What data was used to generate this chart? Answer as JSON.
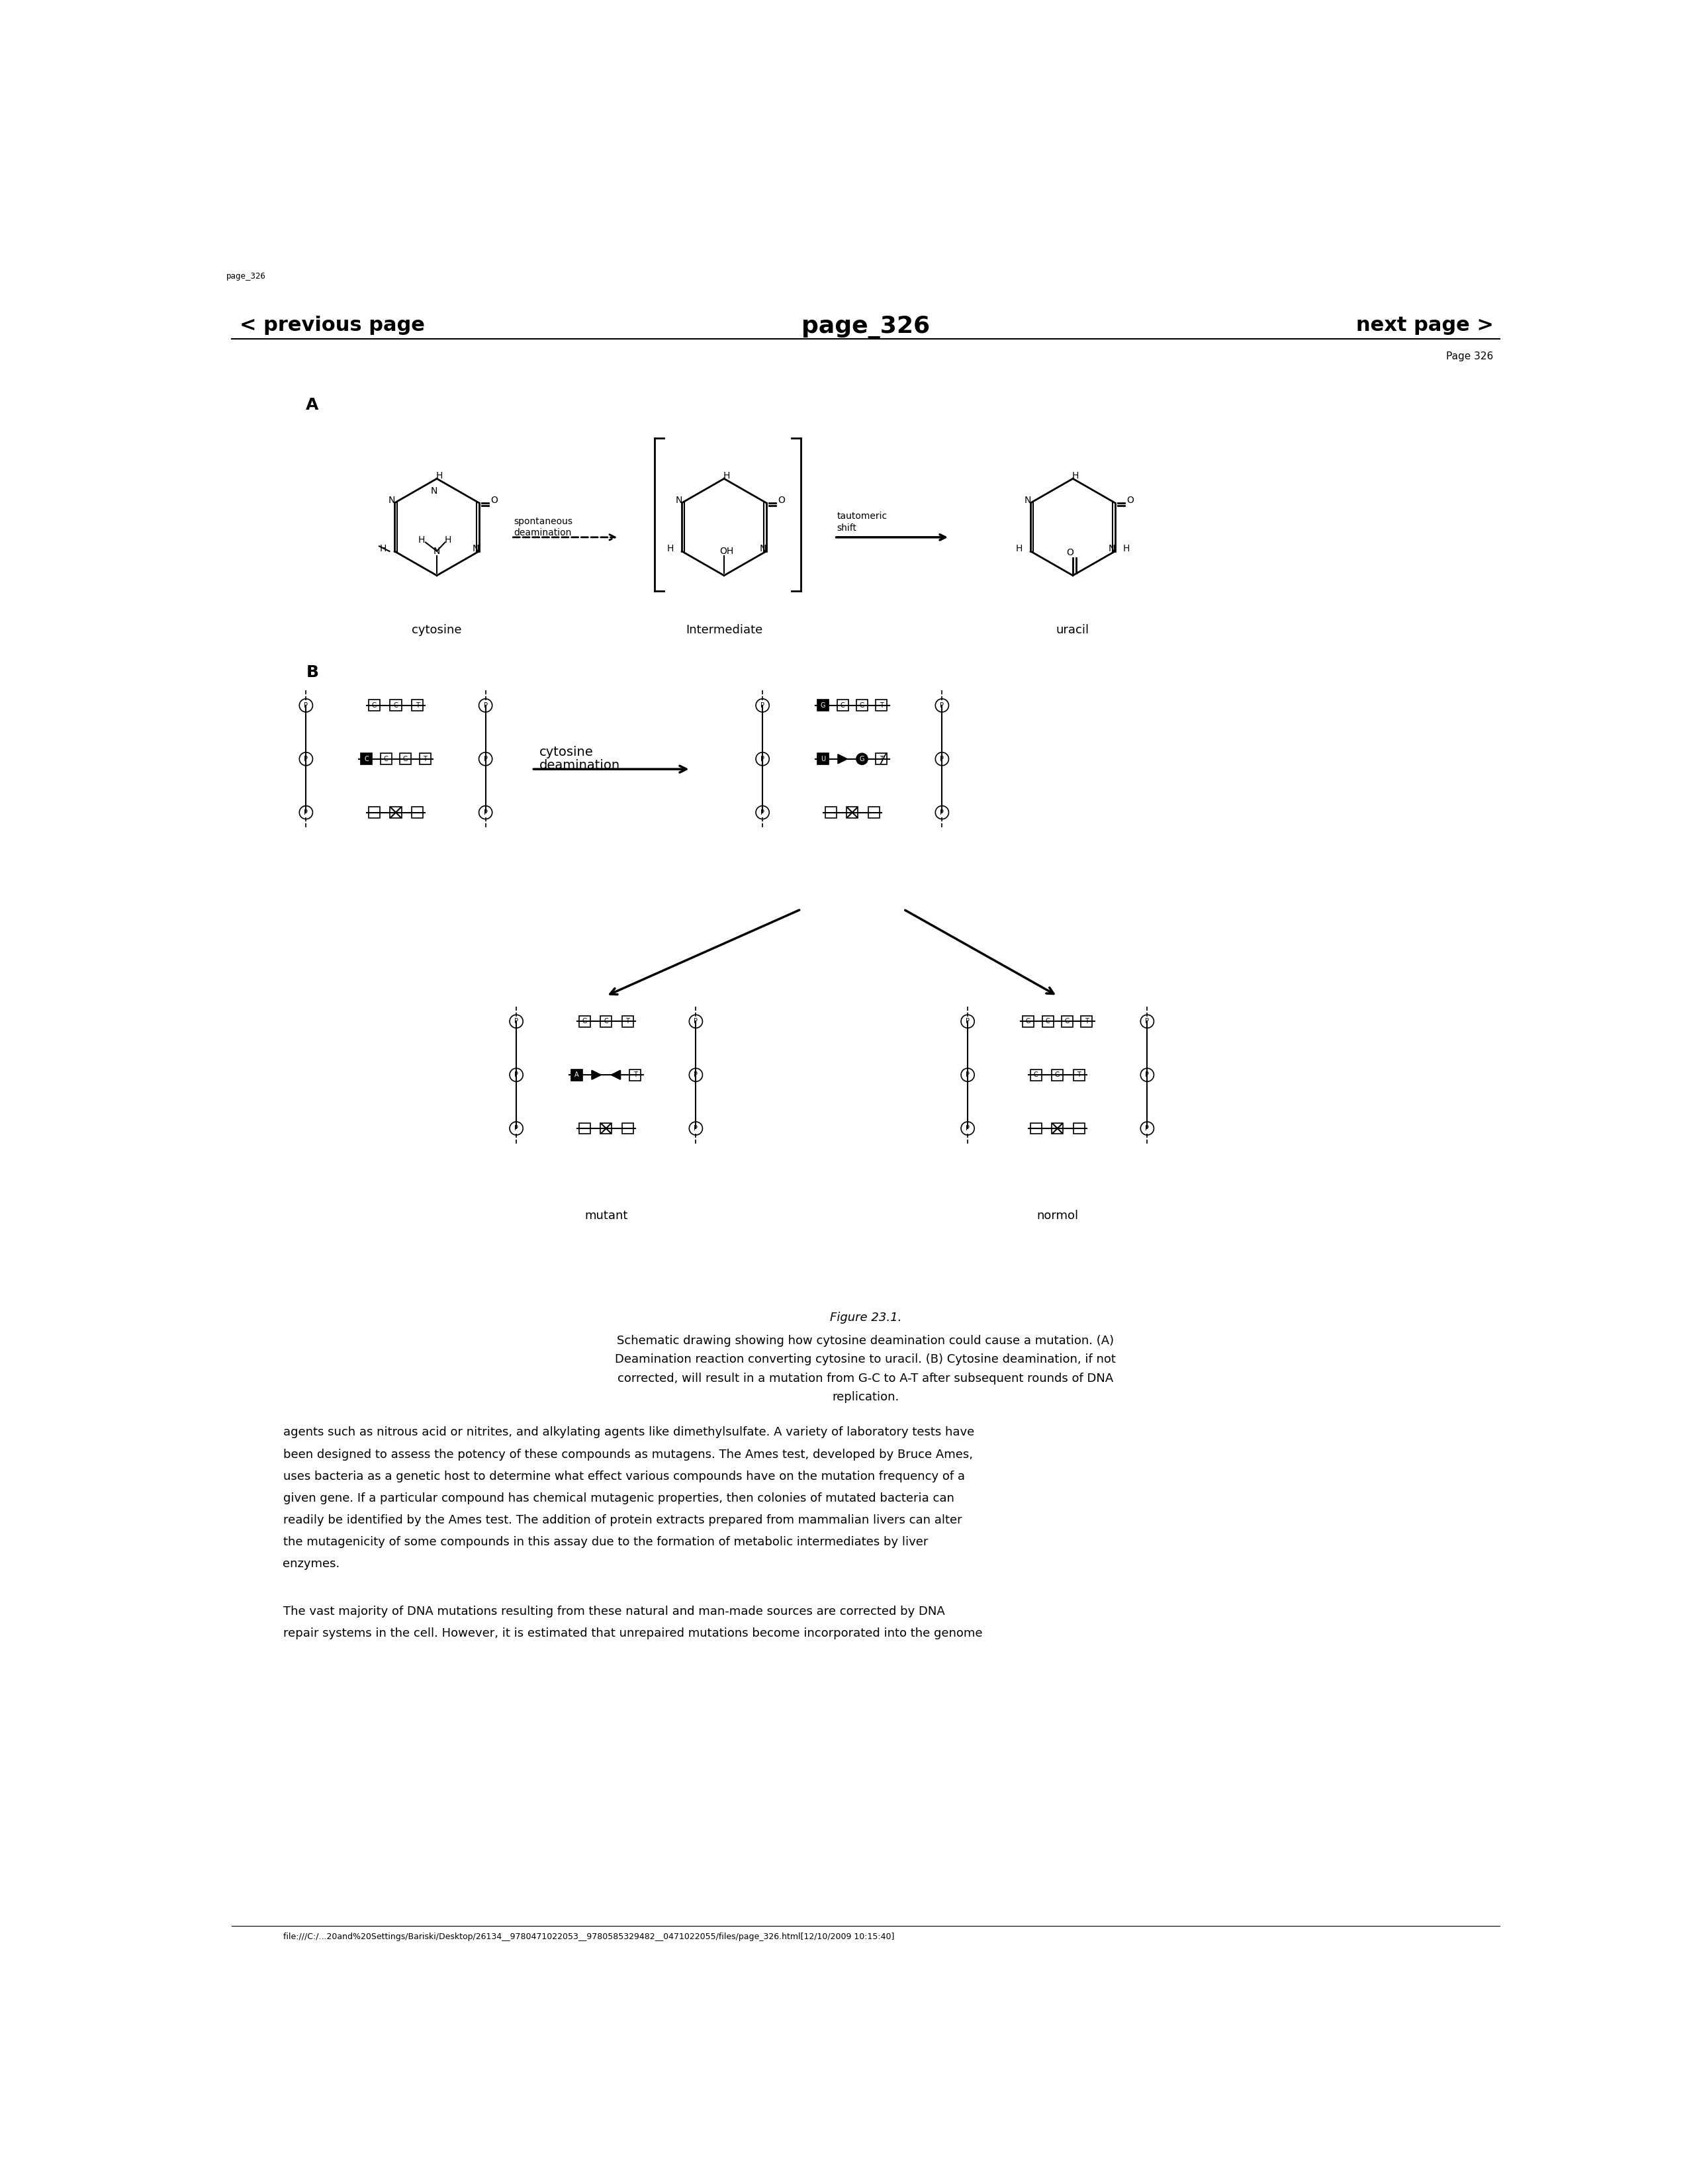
{
  "bg_color": "#ffffff",
  "page_label": "page_326",
  "nav_left": "< previous page",
  "nav_center": "page_326",
  "nav_right": "next page >",
  "page_number": "Page 326",
  "figure_caption_title": "Figure 23.1.",
  "figure_caption_lines": [
    "Schematic drawing showing how cytosine deamination could cause a mutation. (A)",
    "Deamination reaction converting cytosine to uracil. (B) Cytosine deamination, if not",
    "corrected, will result in a mutation from G-C to A-T after subsequent rounds of DNA",
    "replication."
  ],
  "body_text_1_lines": [
    "agents such as nitrous acid or nitrites, and alkylating agents like dimethylsulfate. A variety of laboratory tests have",
    "been designed to assess the potency of these compounds as mutagens. The Ames test, developed by Bruce Ames,",
    "uses bacteria as a genetic host to determine what effect various compounds have on the mutation frequency of a",
    "given gene. If a particular compound has chemical mutagenic properties, then colonies of mutated bacteria can",
    "readily be identified by the Ames test. The addition of protein extracts prepared from mammalian livers can alter",
    "the mutagenicity of some compounds in this assay due to the formation of metabolic intermediates by liver",
    "enzymes."
  ],
  "body_text_2_lines": [
    "The vast majority of DNA mutations resulting from these natural and man-made sources are corrected by DNA",
    "repair systems in the cell. However, it is estimated that unrepaired mutations become incorporated into the genome"
  ],
  "footer": "file:///C:/...20and%20Settings/Bariski/Desktop/26134__9780471022053__9780585329482__0471022055/files/page_326.html[12/10/2009 10:15:40]"
}
